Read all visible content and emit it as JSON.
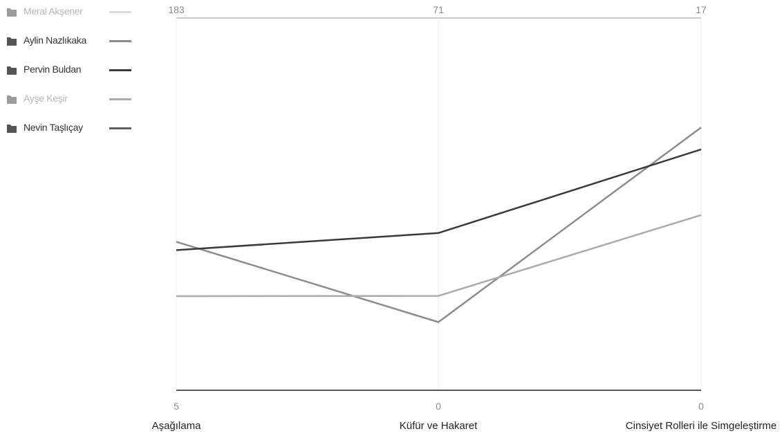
{
  "legend": [
    {
      "label": "Meral Akşener",
      "color": "#d9d9d9",
      "muted": true
    },
    {
      "label": "Aylin Nazlıkaka",
      "color": "#8c8c8c",
      "muted": false
    },
    {
      "label": "Pervin Buldan",
      "color": "#3a3a3a",
      "muted": false
    },
    {
      "label": "Ayşe Keşir",
      "color": "#ababab",
      "muted": true
    },
    {
      "label": "Nevin Taşlıçay",
      "color": "#5e5e5e",
      "muted": false
    }
  ],
  "chart_data": {
    "type": "line",
    "subtype": "parallel-coordinates",
    "axes": [
      {
        "label": "Aşağılama",
        "max": 183,
        "min": 5
      },
      {
        "label": "Küfür ve Hakaret",
        "max": 71,
        "min": 0
      },
      {
        "label": "Cinsiyet Rolleri ile Simgeleştirme",
        "max": 17,
        "min": 0
      }
    ],
    "series": [
      {
        "name": "Aylin Nazlıkaka",
        "color": "#8c8c8c",
        "values": [
          76,
          13,
          12
        ]
      },
      {
        "name": "Pervin Buldan",
        "color": "#3a3a3a",
        "values": [
          72,
          30,
          11
        ]
      },
      {
        "name": "Ayşe Keşir",
        "color": "#ababab",
        "values": [
          50,
          18,
          8
        ]
      }
    ],
    "grid": true,
    "legend_position": "top-left"
  }
}
